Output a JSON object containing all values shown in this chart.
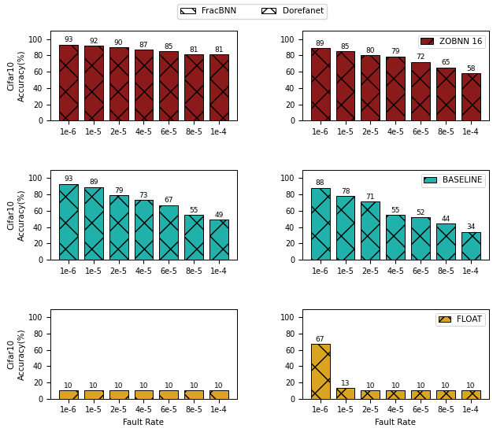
{
  "fault_rates": [
    "1e-6",
    "1e-5",
    "2e-5",
    "4e-5",
    "6e-5",
    "8e-5",
    "1e-4"
  ],
  "panels": {
    "top_left": {
      "values": [
        93,
        92,
        90,
        87,
        85,
        81,
        81
      ],
      "color": "#8B1A1A",
      "ylabel": "Cifar10\nAccuracy(%)",
      "ylim": [
        0,
        110
      ],
      "yticks": [
        0,
        20,
        40,
        60,
        80,
        100
      ]
    },
    "top_right": {
      "values": [
        89,
        85,
        80,
        79,
        72,
        65,
        58
      ],
      "color": "#8B1A1A",
      "ylabel": "",
      "ylim": [
        0,
        110
      ],
      "yticks": [
        0,
        20,
        40,
        60,
        80,
        100
      ],
      "inner_legend": "ZOBNN 16"
    },
    "mid_left": {
      "values": [
        93,
        89,
        79,
        73,
        67,
        55,
        49
      ],
      "color": "#20B2AA",
      "ylabel": "Cifar10\nAccuracy(%)",
      "ylim": [
        0,
        110
      ],
      "yticks": [
        0,
        20,
        40,
        60,
        80,
        100
      ]
    },
    "mid_right": {
      "values": [
        88,
        78,
        71,
        55,
        52,
        44,
        34
      ],
      "color": "#20B2AA",
      "ylabel": "",
      "ylim": [
        0,
        110
      ],
      "yticks": [
        0,
        20,
        40,
        60,
        80,
        100
      ],
      "inner_legend": "BASELINE"
    },
    "bot_left": {
      "values": [
        10,
        10,
        10,
        10,
        10,
        10,
        10
      ],
      "color": "#DAA520",
      "ylabel": "Cifar10\nAccuracy(%)",
      "ylim": [
        0,
        110
      ],
      "yticks": [
        0,
        20,
        40,
        60,
        80,
        100
      ]
    },
    "bot_right": {
      "values": [
        67,
        13,
        10,
        10,
        10,
        10,
        10
      ],
      "color": "#DAA520",
      "ylabel": "",
      "ylim": [
        0,
        110
      ],
      "yticks": [
        0,
        20,
        40,
        60,
        80,
        100
      ],
      "inner_legend": "FLOAT"
    }
  },
  "panel_order": [
    [
      "top_left",
      "top_right"
    ],
    [
      "mid_left",
      "mid_right"
    ],
    [
      "bot_left",
      "bot_right"
    ]
  ],
  "inner_legend_colors": {
    "ZOBNN 16": "#8B1A1A",
    "BASELINE": "#20B2AA",
    "FLOAT": "#DAA520"
  },
  "xlabel": "Fault Rate",
  "label_fontsize": 7.5,
  "tick_fontsize": 7,
  "bar_fontsize": 6.5,
  "legend_fontsize": 7.5,
  "background_color": "#ffffff"
}
